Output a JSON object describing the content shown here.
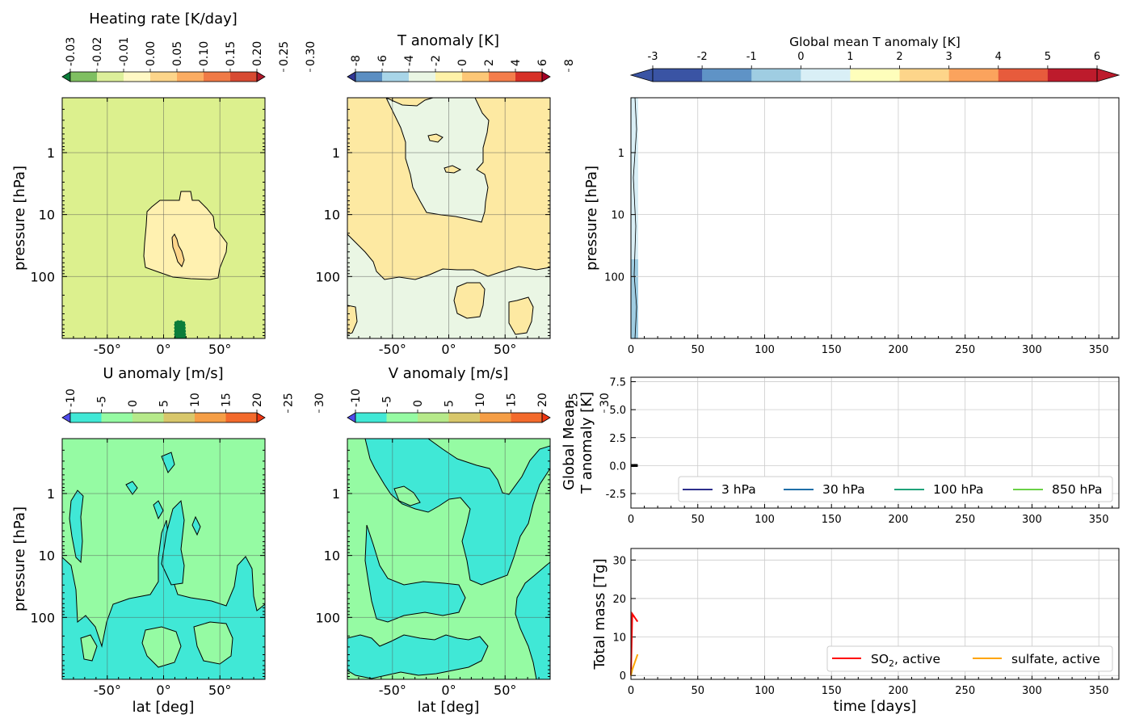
{
  "chart_data": [
    {
      "id": "heating",
      "type": "heatmap",
      "title": "",
      "colorbar_label": "Heating  rate [K/day]",
      "colorbar_ticks": [
        "-0.03",
        "-0.02",
        "-0.01",
        "0.00",
        "0.05",
        "0.10",
        "0.15",
        "0.20",
        "0.25",
        "0.30"
      ],
      "colorbar_colors": [
        "#0b7d3a",
        "#7fbf61",
        "#dcef9a",
        "#fff8c4",
        "#fdd58a",
        "#fbac62",
        "#f07a46",
        "#d84a32",
        "#b2182b"
      ],
      "colorbar_extend": "both",
      "ylabel": "pressure  [hPa]",
      "xlabel": "",
      "xticks": [
        "-50°",
        "0°",
        "50°"
      ],
      "yticks": [
        "1",
        "10",
        "100"
      ],
      "regions": [
        {
          "shape": "background",
          "value": "0.00 to 0.05",
          "color": "#dcf08e"
        },
        {
          "shape": "blob",
          "value": "0.05 to 0.10",
          "color": "#fff1b0",
          "lat_range": [
            -30,
            45
          ],
          "p_range_hPa": [
            5,
            120
          ]
        },
        {
          "shape": "blob",
          "value": "0.10 to 0.15",
          "color": "#fdd58a",
          "lat_range": [
            10,
            20
          ],
          "p_range_hPa": [
            25,
            80
          ]
        },
        {
          "shape": "blob",
          "value": "-0.03",
          "color": "#0b7d3a",
          "lat_range": [
            20,
            30
          ],
          "p_range_hPa": [
            400,
            1000
          ]
        }
      ]
    },
    {
      "id": "t_anom",
      "type": "heatmap",
      "colorbar_label": "T anomaly [K]",
      "colorbar_ticks": [
        "-8",
        "-6",
        "-4",
        "-2",
        "0",
        "2",
        "4",
        "6",
        "8"
      ],
      "colorbar_colors": [
        "#313695",
        "#5b8ec2",
        "#a8d5e8",
        "#eaf6e4",
        "#fff2a8",
        "#fdc776",
        "#f47d4b",
        "#d73027",
        "#a50026"
      ],
      "colorbar_extend": "both",
      "xticks": [
        "-50°",
        "0°",
        "50°"
      ],
      "yticks": [
        "1",
        "10",
        "100"
      ],
      "regions": [
        {
          "shape": "background",
          "value": "0 to 2",
          "color": "#fde9a2"
        },
        {
          "shape": "blob",
          "value": "-2 to 0",
          "color": "#eaf6e4"
        },
        {
          "shape": "blob",
          "value": "2 to 4",
          "color": "#fdd58a"
        }
      ]
    },
    {
      "id": "u_anom",
      "type": "heatmap",
      "colorbar_label": "U anomaly [m/s]",
      "colorbar_ticks": [
        "-10",
        "-5",
        "0",
        "5",
        "10",
        "15",
        "20",
        "25",
        "30"
      ],
      "colorbar_colors": [
        "#4f4dec",
        "#40e8d6",
        "#95fba3",
        "#b6e98a",
        "#d8c76b",
        "#f59e46",
        "#f36a2c",
        "#ef3612"
      ],
      "colorbar_extend": "both",
      "ylabel": "pressure  [hPa]",
      "xlabel": "lat [deg]",
      "xticks": [
        "-50°",
        "0°",
        "50°"
      ],
      "yticks": [
        "1",
        "10",
        "100"
      ],
      "regions": [
        {
          "shape": "background",
          "value": "0 to 5",
          "color": "#95fba3"
        },
        {
          "shape": "blob",
          "value": "-5 to 0",
          "color": "#40e8d6"
        }
      ]
    },
    {
      "id": "v_anom",
      "type": "heatmap",
      "colorbar_label": "V anomaly [m/s]",
      "colorbar_ticks": [
        "-10",
        "-5",
        "0",
        "5",
        "10",
        "15",
        "20",
        "25",
        "30"
      ],
      "colorbar_colors": [
        "#4f4dec",
        "#40e8d6",
        "#95fba3",
        "#b6e98a",
        "#d8c76b",
        "#f59e46",
        "#f36a2c",
        "#ef3612"
      ],
      "colorbar_extend": "both",
      "xlabel": "lat [deg]",
      "xticks": [
        "-50°",
        "0°",
        "50°"
      ],
      "yticks": [
        "1",
        "10",
        "100"
      ],
      "regions": [
        {
          "shape": "background",
          "value": "0 to 5",
          "color": "#95fba3"
        },
        {
          "shape": "blob",
          "value": "-5 to 0",
          "color": "#40e8d6"
        }
      ]
    },
    {
      "id": "global_t_timeseries",
      "type": "heatmap",
      "colorbar_label": "Global mean T anomaly [K]",
      "colorbar_ticks": [
        "-3",
        "-2",
        "-1",
        "0",
        "1",
        "2",
        "3",
        "4",
        "5",
        "6"
      ],
      "colorbar_colors": [
        "#3a54a4",
        "#5f93c6",
        "#9fcde2",
        "#d9eff6",
        "#fefebb",
        "#fdd58a",
        "#fba35d",
        "#e75b3c",
        "#bd1b2c"
      ],
      "colorbar_extend": "both",
      "ylabel": "pressure  [hPa]",
      "xticks": [
        "0",
        "50",
        "100",
        "150",
        "200",
        "250",
        "300",
        "350"
      ],
      "yticks": [
        "1",
        "10",
        "100"
      ],
      "xlim": [
        0,
        365
      ],
      "data_extent_days": [
        0,
        5
      ]
    },
    {
      "id": "global_mean_lines",
      "type": "line",
      "ylabel": "Global Mean\nT anomaly [K]",
      "xlim": [
        0,
        365
      ],
      "ylim": [
        -3.8,
        7.9
      ],
      "xticks": [
        "0",
        "50",
        "100",
        "150",
        "200",
        "250",
        "300",
        "350"
      ],
      "yticks": [
        "7.5",
        "5.0",
        "2.5",
        "0.0",
        "-2.5"
      ],
      "series": [
        {
          "name": "3 hPa",
          "color": "#2d2f8c",
          "x": [
            0,
            1,
            2,
            3,
            4,
            5
          ],
          "values": [
            0,
            0.02,
            -0.01,
            0.03,
            0.01,
            0.02
          ]
        },
        {
          "name": "30 hPa",
          "color": "#1f6fa8",
          "x": [
            0,
            1,
            2,
            3,
            4,
            5
          ],
          "values": [
            0,
            0.01,
            0.02,
            0.0,
            0.01,
            0.02
          ]
        },
        {
          "name": "100 hPa",
          "color": "#1fa37a",
          "x": [
            0,
            1,
            2,
            3,
            4,
            5
          ],
          "values": [
            0,
            0.0,
            0.01,
            0.02,
            0.0,
            0.01
          ]
        },
        {
          "name": "850 hPa",
          "color": "#6ad146",
          "x": [
            0,
            1,
            2,
            3,
            4,
            5
          ],
          "values": [
            0,
            0.0,
            0.0,
            0.01,
            0.0,
            0.0
          ]
        }
      ],
      "legend": "lower right"
    },
    {
      "id": "total_mass",
      "type": "line",
      "ylabel": "Total mass [Tg]",
      "xlabel": "time [days]",
      "xlim": [
        0,
        365
      ],
      "ylim": [
        -1,
        33
      ],
      "xticks": [
        "0",
        "50",
        "100",
        "150",
        "200",
        "250",
        "300",
        "350"
      ],
      "yticks": [
        "30",
        "20",
        "10",
        "0"
      ],
      "series": [
        {
          "name": "SO2, active",
          "name_main": "SO",
          "name_sub": "2",
          "name_rest": ", active",
          "color": "#ff0000",
          "x": [
            0,
            1,
            2,
            3,
            4,
            5
          ],
          "values": [
            0,
            16,
            15.5,
            15,
            14.5,
            14
          ]
        },
        {
          "name": "sulfate, active",
          "color": "#ffa500",
          "x": [
            0,
            1,
            2,
            3,
            4,
            5
          ],
          "values": [
            0,
            1.5,
            2.5,
            3.5,
            4.5,
            5.5
          ]
        }
      ],
      "legend": "lower right"
    }
  ]
}
